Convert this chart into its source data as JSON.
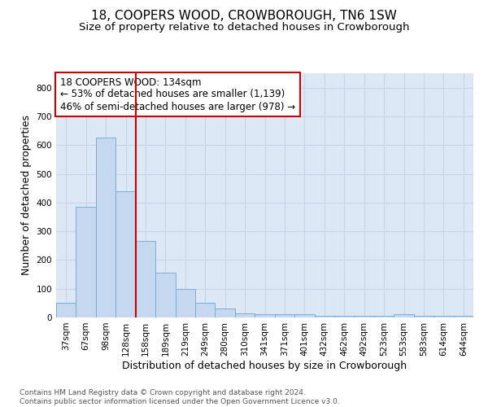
{
  "title": "18, COOPERS WOOD, CROWBOROUGH, TN6 1SW",
  "subtitle": "Size of property relative to detached houses in Crowborough",
  "xlabel": "Distribution of detached houses by size in Crowborough",
  "ylabel": "Number of detached properties",
  "categories": [
    "37sqm",
    "67sqm",
    "98sqm",
    "128sqm",
    "158sqm",
    "189sqm",
    "219sqm",
    "249sqm",
    "280sqm",
    "310sqm",
    "341sqm",
    "371sqm",
    "401sqm",
    "432sqm",
    "462sqm",
    "492sqm",
    "523sqm",
    "553sqm",
    "583sqm",
    "614sqm",
    "644sqm"
  ],
  "values": [
    50,
    385,
    625,
    440,
    265,
    155,
    98,
    52,
    30,
    15,
    12,
    12,
    12,
    5,
    5,
    5,
    5,
    12,
    5,
    5,
    5
  ],
  "bar_color": "#c5d8f0",
  "bar_edge_color": "#7aaed4",
  "grid_color": "#c8d4e8",
  "background_color": "#dce8f5",
  "vline_color": "#cc0000",
  "annotation_text": "18 COOPERS WOOD: 134sqm\n← 53% of detached houses are smaller (1,139)\n46% of semi-detached houses are larger (978) →",
  "annotation_box_color": "#ffffff",
  "annotation_box_edge": "#cc0000",
  "ylim": [
    0,
    850
  ],
  "yticks": [
    0,
    100,
    200,
    300,
    400,
    500,
    600,
    700,
    800
  ],
  "footer_text": "Contains HM Land Registry data © Crown copyright and database right 2024.\nContains public sector information licensed under the Open Government Licence v3.0.",
  "title_fontsize": 11,
  "subtitle_fontsize": 9.5,
  "tick_fontsize": 7.5,
  "label_fontsize": 9,
  "annotation_fontsize": 8.5,
  "footer_fontsize": 6.5
}
